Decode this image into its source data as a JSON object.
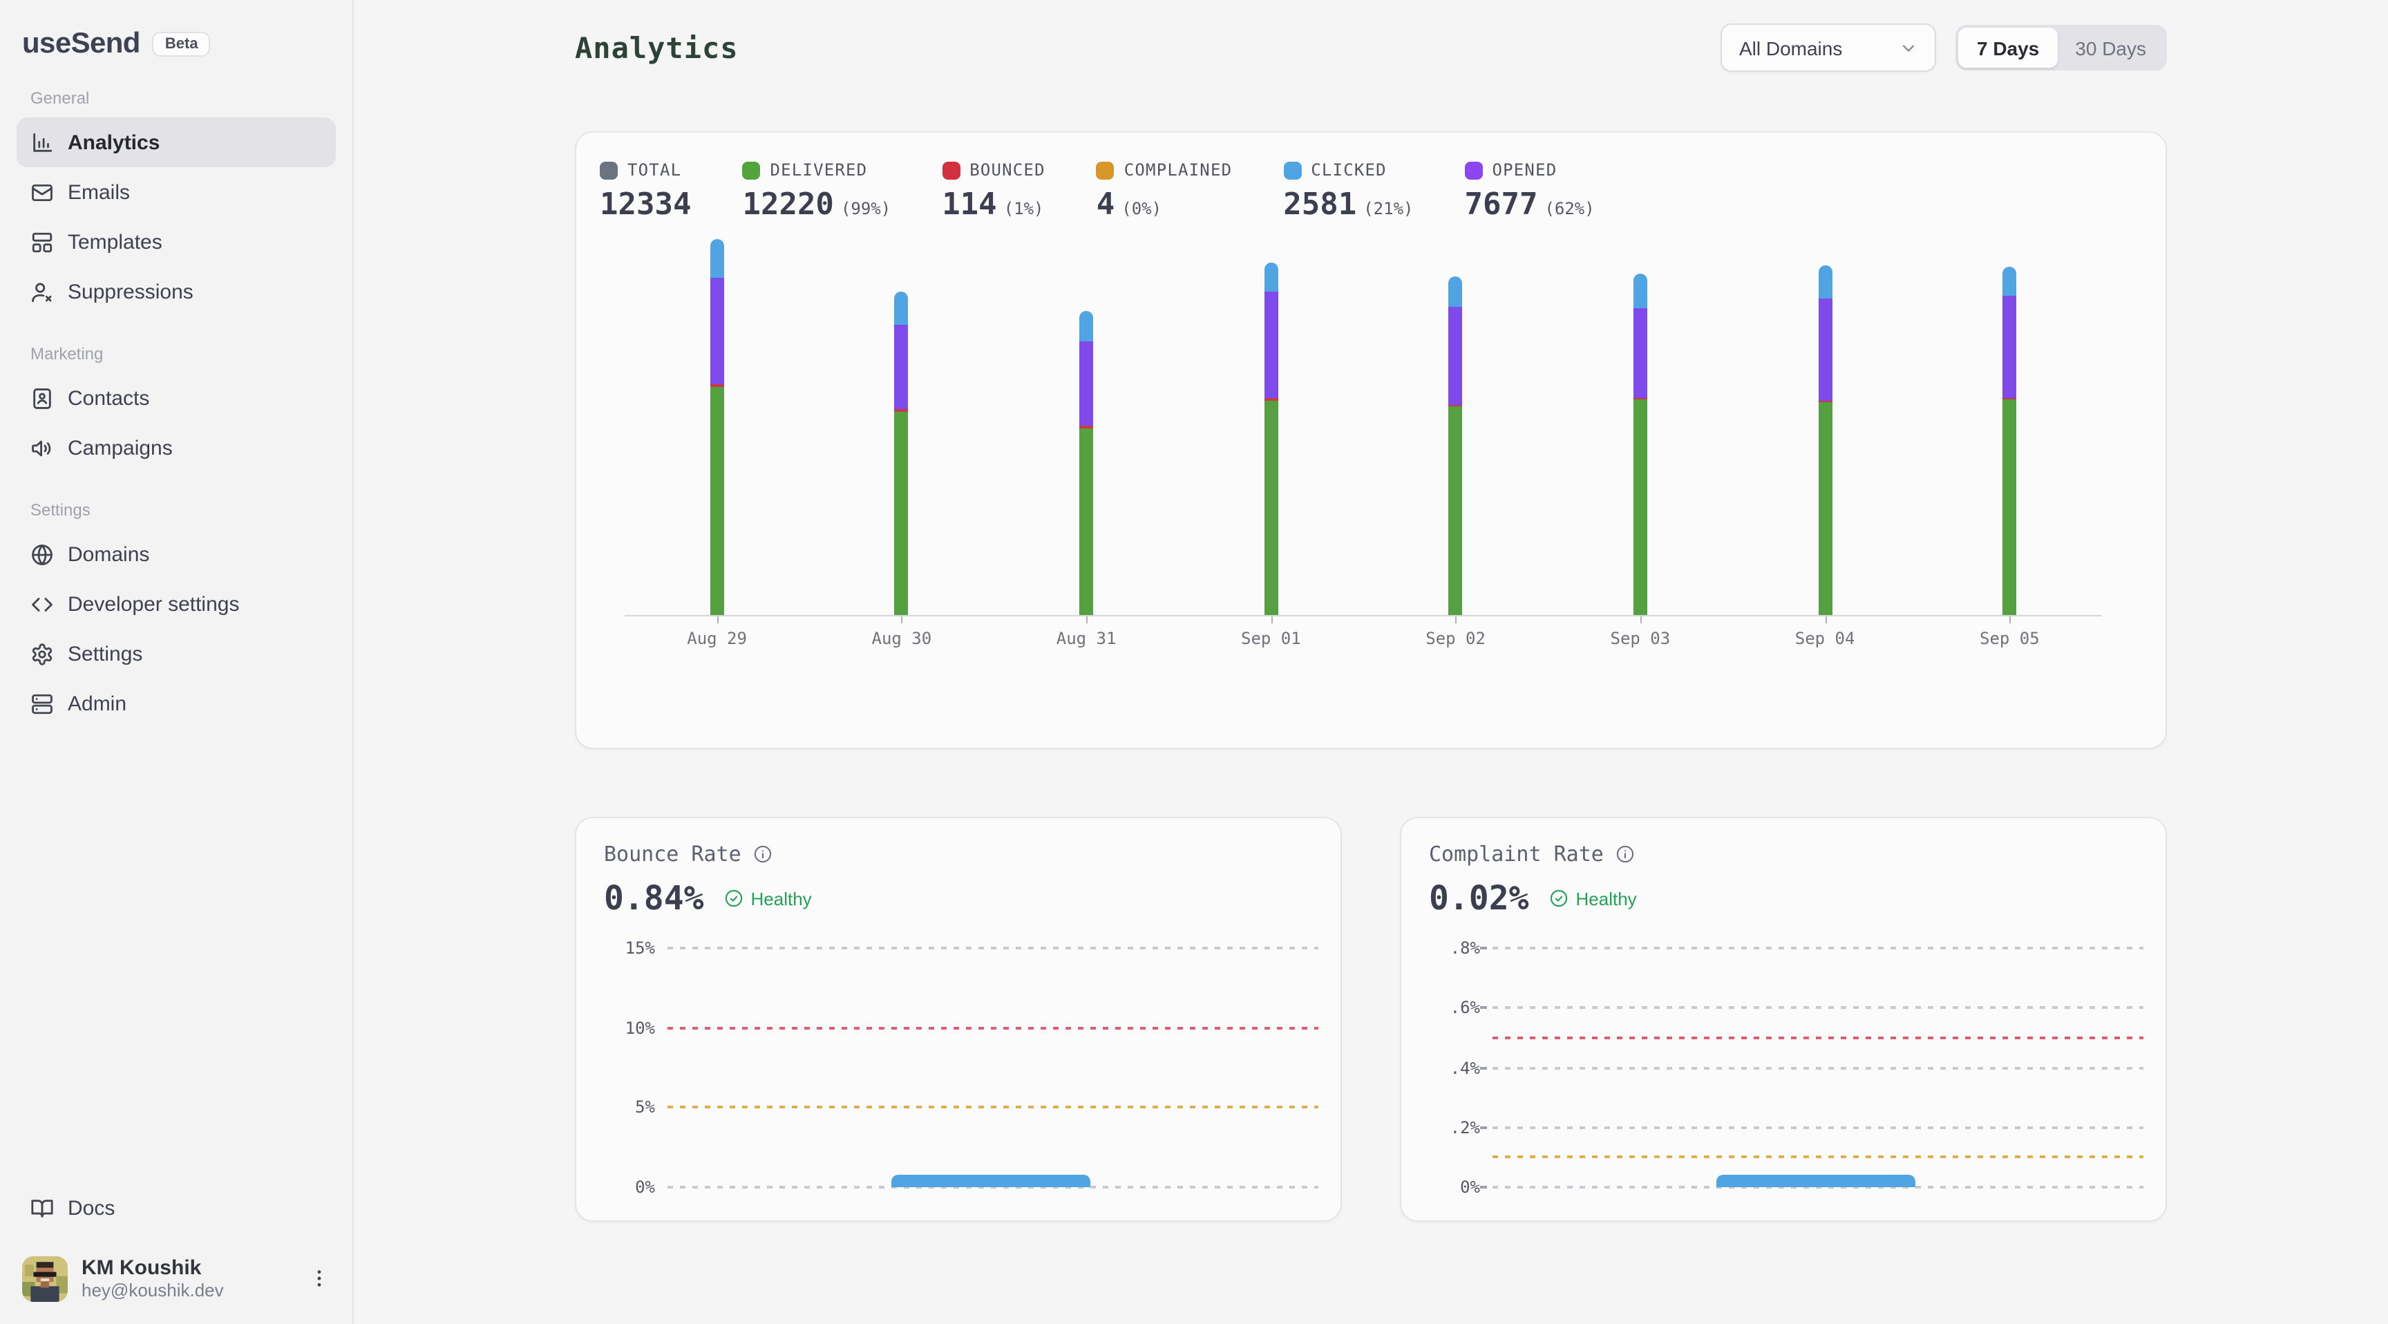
{
  "app": {
    "brand": "useSend",
    "badge": "Beta"
  },
  "sidebar": {
    "sections": [
      {
        "label": "General",
        "items": [
          {
            "label": "Analytics",
            "icon": "bar-chart",
            "active": true
          },
          {
            "label": "Emails",
            "icon": "mail",
            "active": false
          },
          {
            "label": "Templates",
            "icon": "layout-template",
            "active": false
          },
          {
            "label": "Suppressions",
            "icon": "user-x",
            "active": false
          }
        ]
      },
      {
        "label": "Marketing",
        "items": [
          {
            "label": "Contacts",
            "icon": "contact-book",
            "active": false
          },
          {
            "label": "Campaigns",
            "icon": "speaker",
            "active": false
          }
        ]
      },
      {
        "label": "Settings",
        "items": [
          {
            "label": "Domains",
            "icon": "globe",
            "active": false
          },
          {
            "label": "Developer settings",
            "icon": "code",
            "active": false
          },
          {
            "label": "Settings",
            "icon": "gear",
            "active": false
          },
          {
            "label": "Admin",
            "icon": "server",
            "active": false
          }
        ]
      }
    ],
    "docs_label": "Docs",
    "user": {
      "name": "KM Koushik",
      "email": "hey@koushik.dev"
    }
  },
  "header": {
    "title": "Analytics",
    "domain_filter": "All Domains",
    "range_options": [
      "7 Days",
      "30 Days"
    ],
    "active_range": "7 Days"
  },
  "stats": [
    {
      "label": "TOTAL",
      "value": "12334",
      "percent": null,
      "color": "#6B7280"
    },
    {
      "label": "DELIVERED",
      "value": "12220",
      "percent": "(99%)",
      "color": "#52A43B"
    },
    {
      "label": "BOUNCED",
      "value": "114",
      "percent": "(1%)",
      "color": "#D2303F"
    },
    {
      "label": "COMPLAINED",
      "value": "4",
      "percent": "(0%)",
      "color": "#D9962B"
    },
    {
      "label": "CLICKED",
      "value": "2581",
      "percent": "(21%)",
      "color": "#4FA4E1"
    },
    {
      "label": "OPENED",
      "value": "7677",
      "percent": "(62%)",
      "color": "#8B46F0"
    }
  ],
  "chart_data": [
    {
      "id": "email-events-by-day",
      "type": "stacked-bar",
      "categories": [
        "Aug 29",
        "Aug 30",
        "Aug 31",
        "Sep 01",
        "Sep 02",
        "Sep 03",
        "Sep 04",
        "Sep 05"
      ],
      "series": [
        {
          "name": "delivered",
          "color": "#55A041",
          "values": [
            1030,
            915,
            840,
            970,
            940,
            975,
            960,
            975
          ]
        },
        {
          "name": "bounced",
          "color": "#C93A47",
          "values": [
            12,
            12,
            12,
            12,
            9,
            9,
            6,
            6
          ]
        },
        {
          "name": "opened",
          "color": "#7E4BEA",
          "values": [
            478,
            380,
            380,
            480,
            442,
            404,
            459,
            464
          ]
        },
        {
          "name": "clicked",
          "color": "#4FA4E1",
          "values": [
            177,
            148,
            135,
            128,
            140,
            155,
            148,
            134
          ]
        }
      ],
      "ylim": [
        0,
        1760
      ],
      "legend_position": "top",
      "grid": false,
      "values_estimated_from_pixels": true
    },
    {
      "id": "bounce-rate",
      "type": "bar",
      "title": "Bounce Rate",
      "ymax": 15,
      "unit": "%",
      "gridlines": [
        {
          "label": "15%",
          "value": 15,
          "color": "#C9CAD1",
          "tick": false
        },
        {
          "label": "10%",
          "value": 10,
          "color": "#D95E75",
          "tick": false
        },
        {
          "label": "5%",
          "value": 5,
          "color": "#DDAE4F",
          "tick": false
        },
        {
          "label": "0%",
          "value": 0,
          "color": "#C9CAD1",
          "tick": false
        }
      ],
      "bar": {
        "value": 0.84,
        "color": "#4FA4E1",
        "span_frac": [
          0.345,
          0.65
        ]
      }
    },
    {
      "id": "complaint-rate",
      "type": "bar",
      "title": "Complaint Rate",
      "ymax": 0.8,
      "unit": "%",
      "gridlines": [
        {
          "label": ".8%",
          "value": 0.8,
          "color": "#C9CAD1",
          "tick": true
        },
        {
          "label": ".6%",
          "value": 0.6,
          "color": "#C9CAD1",
          "tick": true
        },
        {
          "value": 0.5,
          "color": "#D95E75",
          "tick": false
        },
        {
          "label": ".4%",
          "value": 0.4,
          "color": "#C9CAD1",
          "tick": true
        },
        {
          "label": ".2%",
          "value": 0.2,
          "color": "#C9CAD1",
          "tick": true
        },
        {
          "value": 0.1,
          "color": "#DDAE4F",
          "tick": false
        },
        {
          "label": "0%",
          "value": 0,
          "color": "#C9CAD1",
          "tick": true
        }
      ],
      "bar": {
        "value": 0.02,
        "color": "#4FA4E1",
        "span_frac": [
          0.345,
          0.65
        ]
      }
    }
  ],
  "bounce_card": {
    "title": "Bounce Rate",
    "value": "0.84%",
    "status": "Healthy"
  },
  "complaint_card": {
    "title": "Complaint Rate",
    "value": "0.02%",
    "status": "Healthy"
  }
}
